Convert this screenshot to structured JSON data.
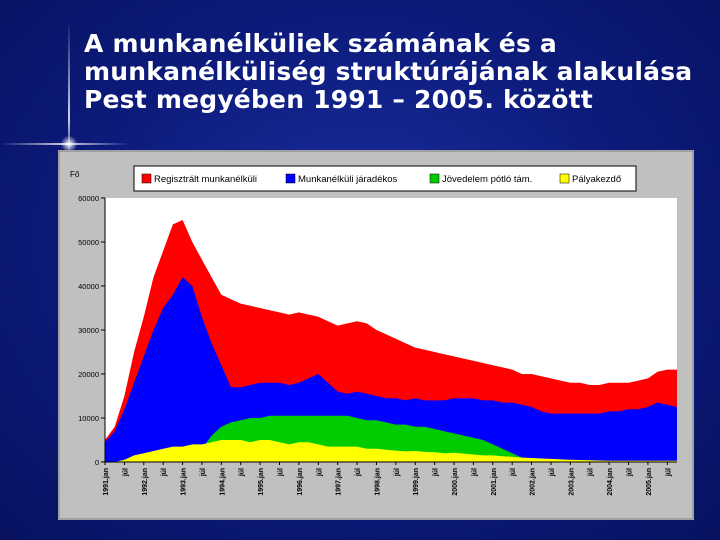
{
  "header": {
    "title": "A munkanélküliek számának és a\nmunkanélküliség struktúrájának alakulása\nPest megyében 1991 – 2005. között"
  },
  "chart_data": {
    "type": "area",
    "stacked": false,
    "ylabel": "Fő",
    "ylim": [
      0,
      60000
    ],
    "yticks": [
      0,
      10000,
      20000,
      30000,
      40000,
      50000,
      60000
    ],
    "x_tick_labels": [
      "1991.jan",
      "júl",
      "1992.jan",
      "júl",
      "1993.jan",
      "júl",
      "1994.jan",
      "júl",
      "1995.jan",
      "júl",
      "1996.jan",
      "júl",
      "1997.jan",
      "júl",
      "1998.jan",
      "júl",
      "1999.jan",
      "júl",
      "2000.jan",
      "júl",
      "2001.jan",
      "júl",
      "2002.jan",
      "júl",
      "2003.jan",
      "júl",
      "2004.jan",
      "júl",
      "2005.jan",
      "júl"
    ],
    "x": [
      1991.0,
      1991.25,
      1991.5,
      1991.75,
      1992.0,
      1992.25,
      1992.5,
      1992.75,
      1993.0,
      1993.25,
      1993.5,
      1993.75,
      1994.0,
      1994.25,
      1994.5,
      1994.75,
      1995.0,
      1995.25,
      1995.5,
      1995.75,
      1996.0,
      1996.25,
      1996.5,
      1996.75,
      1997.0,
      1997.25,
      1997.5,
      1997.75,
      1998.0,
      1998.25,
      1998.5,
      1998.75,
      1999.0,
      1999.25,
      1999.5,
      1999.75,
      2000.0,
      2000.25,
      2000.5,
      2000.75,
      2001.0,
      2001.25,
      2001.5,
      2001.75,
      2002.0,
      2002.25,
      2002.5,
      2002.75,
      2003.0,
      2003.25,
      2003.5,
      2003.75,
      2004.0,
      2004.25,
      2004.5,
      2004.75,
      2005.0,
      2005.25,
      2005.5,
      2005.75
    ],
    "series": [
      {
        "name": "Regisztrált munkanélküli",
        "color": "#ff0000",
        "values": [
          5000,
          8000,
          15000,
          25000,
          33000,
          42000,
          48000,
          54000,
          55000,
          50000,
          46000,
          42000,
          38000,
          37000,
          36000,
          35500,
          35000,
          34500,
          34000,
          33500,
          34000,
          33500,
          33000,
          32000,
          31000,
          31500,
          32000,
          31500,
          30000,
          29000,
          28000,
          27000,
          26000,
          25500,
          25000,
          24500,
          24000,
          23500,
          23000,
          22500,
          22000,
          21500,
          21000,
          20000,
          20000,
          19500,
          19000,
          18500,
          18000,
          18000,
          17500,
          17500,
          18000,
          18000,
          18000,
          18500,
          19000,
          20500,
          21000,
          21000
        ]
      },
      {
        "name": "Munkanélküli járadékos",
        "color": "#0000ff",
        "values": [
          4500,
          7000,
          12000,
          18000,
          24000,
          30000,
          35000,
          38000,
          42000,
          40000,
          33000,
          27000,
          22000,
          17000,
          17000,
          17500,
          18000,
          18000,
          18000,
          17500,
          18000,
          19000,
          20000,
          18000,
          16000,
          15500,
          16000,
          15500,
          15000,
          14500,
          14500,
          14000,
          14500,
          14000,
          14000,
          14000,
          14500,
          14500,
          14500,
          14000,
          14000,
          13500,
          13500,
          13000,
          12500,
          11500,
          11000,
          11000,
          11000,
          11000,
          11000,
          11000,
          11500,
          11500,
          12000,
          12000,
          12500,
          13500,
          13000,
          12500
        ]
      },
      {
        "name": "Jövedelem pótló tám.",
        "color": "#00cc00",
        "values": [
          0,
          0,
          0,
          0,
          0,
          0,
          0,
          0,
          500,
          1500,
          3000,
          6000,
          8000,
          9000,
          9500,
          10000,
          10000,
          10500,
          10500,
          10500,
          10500,
          10500,
          10500,
          10500,
          10500,
          10500,
          10000,
          9500,
          9500,
          9000,
          8500,
          8500,
          8000,
          8000,
          7500,
          7000,
          6500,
          6000,
          5500,
          5000,
          4000,
          3000,
          2000,
          1000,
          0,
          0,
          0,
          0,
          0,
          0,
          0,
          0,
          0,
          0,
          0,
          0,
          0,
          0,
          0,
          0
        ]
      },
      {
        "name": "Pályakezdő",
        "color": "#ffff00",
        "values": [
          0,
          0,
          500,
          1500,
          2000,
          2500,
          3000,
          3500,
          3500,
          4000,
          4000,
          4500,
          5000,
          5000,
          5000,
          4500,
          5000,
          5000,
          4500,
          4000,
          4500,
          4500,
          4000,
          3500,
          3500,
          3500,
          3500,
          3000,
          3000,
          2800,
          2600,
          2400,
          2500,
          2300,
          2200,
          2000,
          2100,
          1900,
          1700,
          1500,
          1500,
          1300,
          1200,
          1000,
          900,
          800,
          700,
          600,
          500,
          450,
          400,
          350,
          300,
          300,
          300,
          300,
          300,
          300,
          300,
          300
        ]
      }
    ],
    "legend_position": "top",
    "grid": false,
    "colors": {
      "plot_background": "#ffffff",
      "panel_background": "#c0c0c0"
    }
  }
}
